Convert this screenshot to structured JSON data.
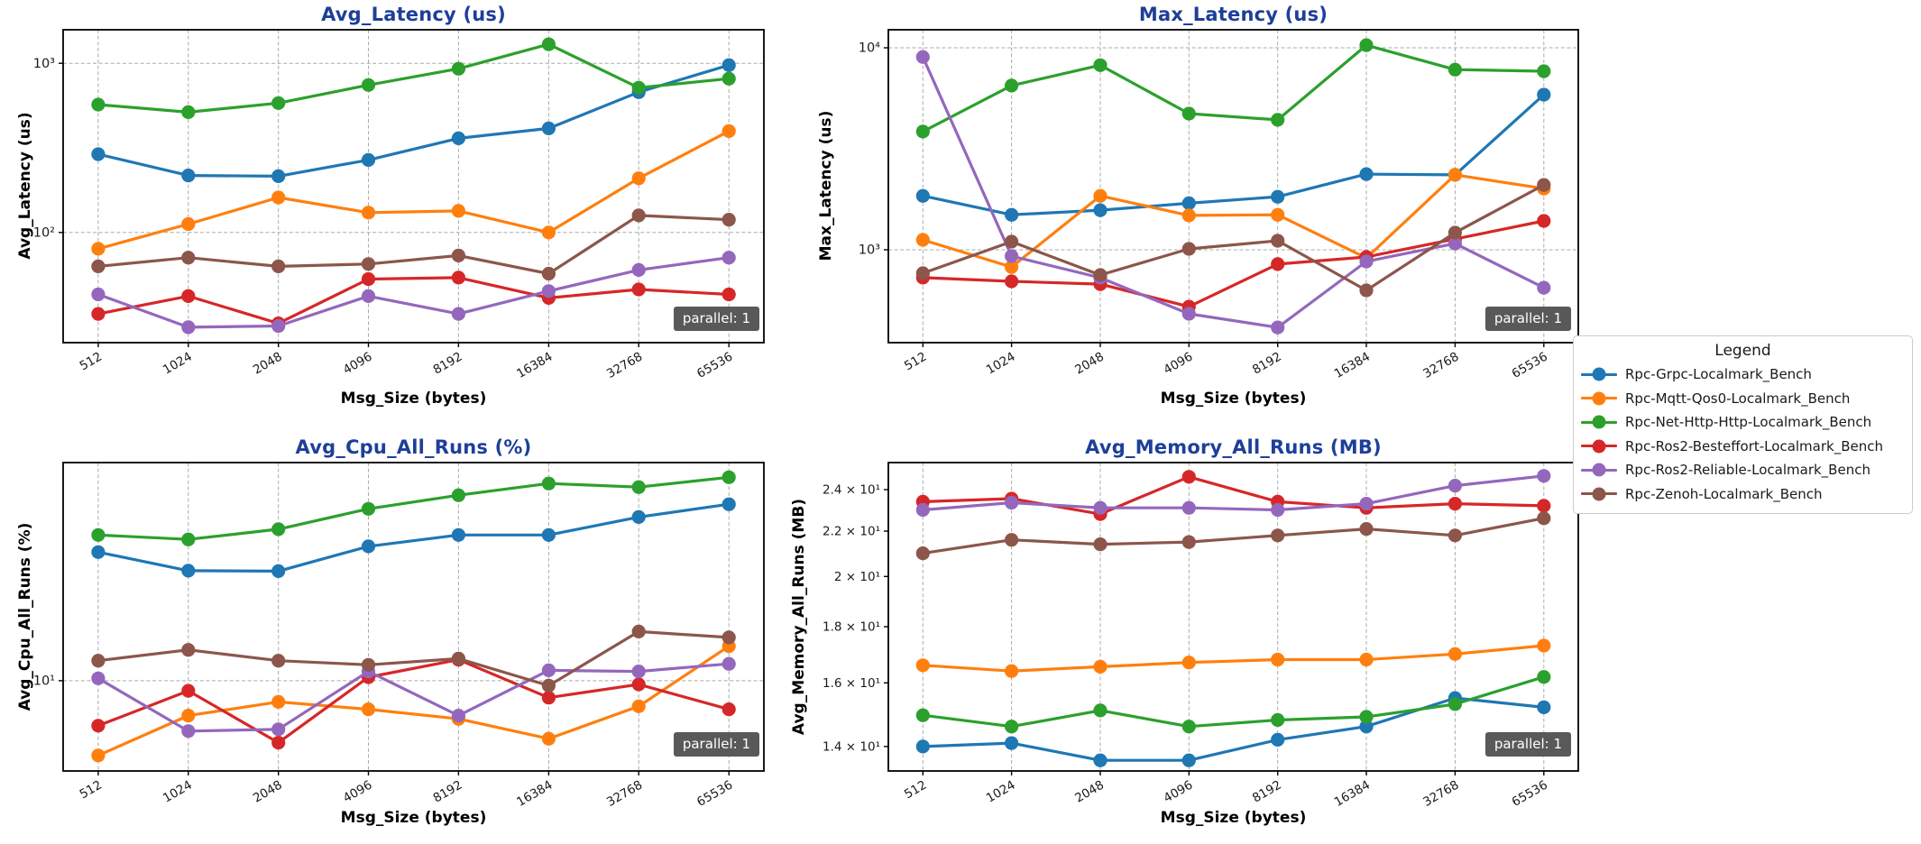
{
  "theme": {
    "background": "#ffffff",
    "title_color": "#1e3f99",
    "tick_color": "#1a1a1a",
    "grid_color": "#ababab",
    "spine_color": "#000000",
    "badge_bg": "#595959",
    "badge_fg": "#ffffff"
  },
  "legend": {
    "title": "Legend",
    "items": [
      {
        "label": "Rpc-Grpc-Localmark_Bench",
        "color": "#1f77b4"
      },
      {
        "label": "Rpc-Mqtt-Qos0-Localmark_Bench",
        "color": "#ff7f0e"
      },
      {
        "label": "Rpc-Net-Http-Http-Localmark_Bench",
        "color": "#2ca02c"
      },
      {
        "label": "Rpc-Ros2-Besteffort-Localmark_Bench",
        "color": "#d62728"
      },
      {
        "label": "Rpc-Ros2-Reliable-Localmark_Bench",
        "color": "#9467bd"
      },
      {
        "label": "Rpc-Zenoh-Localmark_Bench",
        "color": "#8c564b"
      }
    ]
  },
  "badge": {
    "label": "parallel: 1"
  },
  "chart_data": [
    {
      "id": "avg_latency",
      "type": "line",
      "title": "Avg_Latency (us)",
      "xlabel": "Msg_Size (bytes)",
      "ylabel": "Avg_Latency (us)",
      "x_categories": [
        "512",
        "1024",
        "2048",
        "4096",
        "8192",
        "16384",
        "32768",
        "65536"
      ],
      "y_scale": "log",
      "ylim": [
        22.3,
        1578
      ],
      "y_ticks": [
        {
          "value": 100,
          "label": "10²"
        },
        {
          "value": 1000,
          "label": "10³"
        }
      ],
      "grid": {
        "x": true,
        "y": true
      },
      "legend_position": "none",
      "series": [
        {
          "name": "Rpc-Grpc-Localmark_Bench",
          "values": [
            290,
            217,
            215,
            268,
            360,
            412,
            675,
            975
          ]
        },
        {
          "name": "Rpc-Mqtt-Qos0-Localmark_Bench",
          "values": [
            80,
            112,
            161,
            131,
            134,
            100,
            209,
            397
          ]
        },
        {
          "name": "Rpc-Net-Http-Http-Localmark_Bench",
          "values": [
            570,
            514,
            582,
            744,
            929,
            1295,
            717,
            811
          ]
        },
        {
          "name": "Rpc-Ros2-Besteffort-Localmark_Bench",
          "values": [
            33,
            42,
            29,
            53,
            54,
            41,
            46,
            43
          ]
        },
        {
          "name": "Rpc-Ros2-Reliable-Localmark_Bench",
          "values": [
            43,
            27.5,
            28,
            42,
            33,
            45,
            60,
            71
          ]
        },
        {
          "name": "Rpc-Zenoh-Localmark_Bench",
          "values": [
            63,
            71,
            63,
            65,
            73,
            57,
            126,
            119
          ]
        }
      ]
    },
    {
      "id": "max_latency",
      "type": "line",
      "title": "Max_Latency (us)",
      "xlabel": "Msg_Size (bytes)",
      "ylabel": "Max_Latency (us)",
      "x_categories": [
        "512",
        "1024",
        "2048",
        "4096",
        "8192",
        "16384",
        "32768",
        "65536"
      ],
      "y_scale": "log",
      "ylim": [
        347,
        12280
      ],
      "y_ticks": [
        {
          "value": 1000,
          "label": "10³"
        },
        {
          "value": 10000,
          "label": "10⁴"
        }
      ],
      "grid": {
        "x": true,
        "y": true
      },
      "legend_position": "none",
      "series": [
        {
          "name": "Rpc-Grpc-Localmark_Bench",
          "values": [
            1850,
            1490,
            1570,
            1700,
            1830,
            2370,
            2350,
            5860
          ]
        },
        {
          "name": "Rpc-Mqtt-Qos0-Localmark_Bench",
          "values": [
            1120,
            822,
            1850,
            1480,
            1490,
            911,
            2350,
            2010
          ]
        },
        {
          "name": "Rpc-Net-Http-Http-Localmark_Bench",
          "values": [
            3850,
            6500,
            8200,
            4720,
            4400,
            10300,
            7800,
            7650
          ]
        },
        {
          "name": "Rpc-Ros2-Besteffort-Localmark_Bench",
          "values": [
            728,
            698,
            676,
            523,
            849,
            921,
            1130,
            1390
          ]
        },
        {
          "name": "Rpc-Ros2-Reliable-Localmark_Bench",
          "values": [
            9000,
            931,
            727,
            482,
            413,
            875,
            1074,
            649
          ]
        },
        {
          "name": "Rpc-Zenoh-Localmark_Bench",
          "values": [
            766,
            1097,
            750,
            1010,
            1109,
            630,
            1216,
            2095
          ]
        }
      ]
    },
    {
      "id": "avg_cpu",
      "type": "line",
      "title": "Avg_Cpu_All_Runs (%)",
      "xlabel": "Msg_Size (bytes)",
      "ylabel": "Avg_Cpu_All_Runs (%)",
      "x_categories": [
        "512",
        "1024",
        "2048",
        "4096",
        "8192",
        "16384",
        "32768",
        "65536"
      ],
      "y_scale": "log",
      "ylim": [
        4.75,
        60.5
      ],
      "y_ticks": [
        {
          "value": 10,
          "label": "10¹"
        }
      ],
      "grid": {
        "x": true,
        "y": true
      },
      "legend_position": "none",
      "series": [
        {
          "name": "Rpc-Grpc-Localmark_Bench",
          "values": [
            28.9,
            24.8,
            24.7,
            30.3,
            33.3,
            33.3,
            38.6,
            42.9
          ]
        },
        {
          "name": "Rpc-Mqtt-Qos0-Localmark_Bench",
          "values": [
            5.4,
            7.5,
            8.4,
            7.9,
            7.3,
            6.2,
            8.1,
            13.3
          ]
        },
        {
          "name": "Rpc-Net-Http-Http-Localmark_Bench",
          "values": [
            33.3,
            32.1,
            34.9,
            41.3,
            46.2,
            50.9,
            49.4,
            53.6
          ]
        },
        {
          "name": "Rpc-Ros2-Besteffort-Localmark_Bench",
          "values": [
            6.9,
            9.2,
            6.0,
            10.3,
            11.9,
            8.7,
            9.7,
            7.9
          ]
        },
        {
          "name": "Rpc-Ros2-Reliable-Localmark_Bench",
          "values": [
            10.2,
            6.6,
            6.7,
            10.8,
            7.5,
            10.9,
            10.8,
            11.5
          ]
        },
        {
          "name": "Rpc-Zenoh-Localmark_Bench",
          "values": [
            11.8,
            12.9,
            11.8,
            11.4,
            12.0,
            9.6,
            15.0,
            14.3
          ]
        }
      ]
    },
    {
      "id": "avg_memory",
      "type": "line",
      "title": "Avg_Memory_All_Runs (MB)",
      "xlabel": "Msg_Size (bytes)",
      "ylabel": "Avg_Memory_All_Runs (MB)",
      "x_categories": [
        "512",
        "1024",
        "2048",
        "4096",
        "8192",
        "16384",
        "32768",
        "65536"
      ],
      "y_scale": "log",
      "ylim": [
        13.3,
        25.4
      ],
      "y_ticks": [
        {
          "value": 14,
          "label": "1.4 × 10¹"
        },
        {
          "value": 16,
          "label": "1.6 × 10¹"
        },
        {
          "value": 18,
          "label": "1.8 × 10¹"
        },
        {
          "value": 20,
          "label": "2 × 10¹"
        },
        {
          "value": 22,
          "label": "2.2 × 10¹"
        },
        {
          "value": 24,
          "label": "2.4 × 10¹"
        }
      ],
      "grid": {
        "x": true,
        "y": false
      },
      "legend_position": "none",
      "series": [
        {
          "name": "Rpc-Grpc-Localmark_Bench",
          "values": [
            14.0,
            14.1,
            13.6,
            13.6,
            14.2,
            14.6,
            15.5,
            15.2
          ]
        },
        {
          "name": "Rpc-Mqtt-Qos0-Localmark_Bench",
          "values": [
            16.6,
            16.4,
            16.55,
            16.7,
            16.8,
            16.8,
            17.0,
            17.3
          ]
        },
        {
          "name": "Rpc-Net-Http-Http-Localmark_Bench",
          "values": [
            14.95,
            14.6,
            15.1,
            14.6,
            14.8,
            14.9,
            15.3,
            16.2
          ]
        },
        {
          "name": "Rpc-Ros2-Besteffort-Localmark_Bench",
          "values": [
            23.4,
            23.55,
            22.8,
            24.65,
            23.4,
            23.1,
            23.3,
            23.2
          ]
        },
        {
          "name": "Rpc-Ros2-Reliable-Localmark_Bench",
          "values": [
            23.0,
            23.35,
            23.1,
            23.1,
            23.0,
            23.3,
            24.2,
            24.7
          ]
        },
        {
          "name": "Rpc-Zenoh-Localmark_Bench",
          "values": [
            21.0,
            21.6,
            21.4,
            21.5,
            21.8,
            22.1,
            21.8,
            22.6
          ]
        }
      ]
    }
  ]
}
